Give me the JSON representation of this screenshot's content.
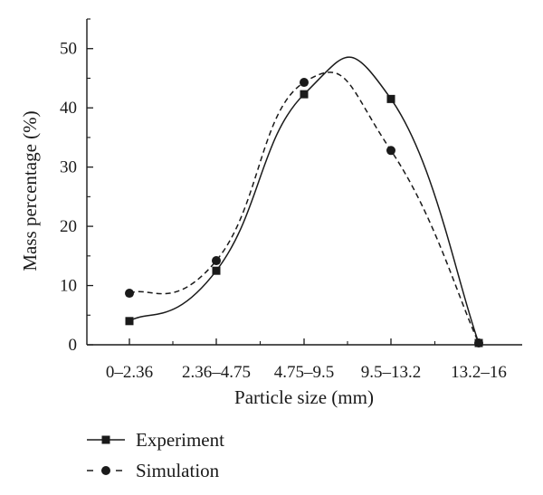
{
  "chart_data": {
    "type": "line",
    "categories": [
      "0–2.36",
      "2.36–4.75",
      "4.75–9.5",
      "9.5–13.2",
      "13.2–16"
    ],
    "series": [
      {
        "name": "Experiment",
        "values": [
          4.0,
          12.5,
          42.3,
          41.5,
          0.3
        ],
        "marker": "square",
        "line_style": "solid",
        "color": "#1a1a1a"
      },
      {
        "name": "Simulation",
        "values": [
          8.7,
          14.2,
          44.3,
          32.8,
          0.3
        ],
        "marker": "circle",
        "line_style": "dashed",
        "color": "#1a1a1a"
      }
    ],
    "xlabel": "Particle size (mm)",
    "ylabel": "Mass percentage (%)",
    "ylim": [
      0,
      55
    ],
    "yticks": [
      0,
      10,
      20,
      30,
      40,
      50
    ],
    "grid": false,
    "legend_position": "bottom-left"
  }
}
